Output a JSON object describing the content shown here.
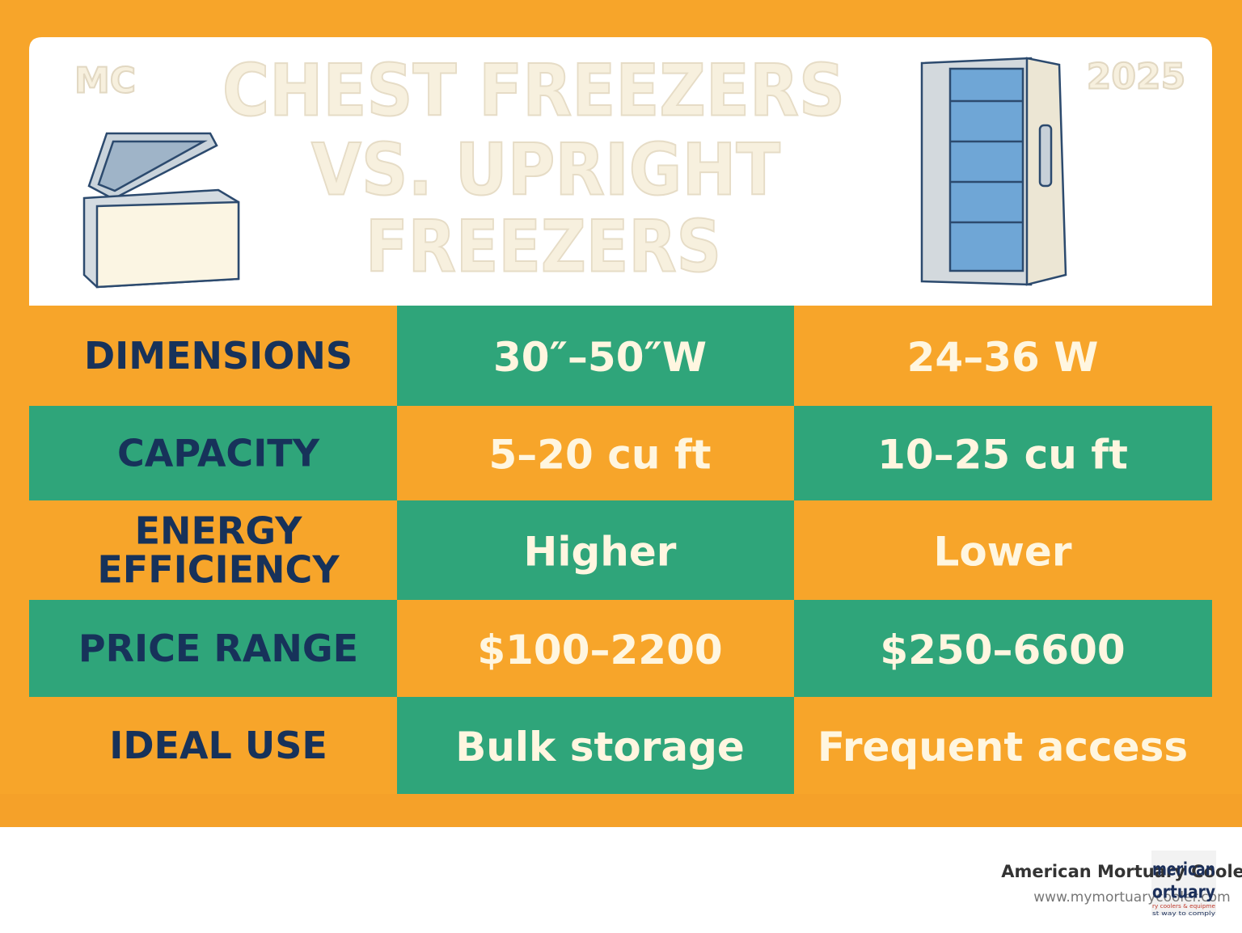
{
  "header": {
    "badge": "MC",
    "year": "2025",
    "title_lines": [
      "CHEST FREEZERS",
      "VS. UPRIGHT",
      "FREEZERS"
    ]
  },
  "table": {
    "rows": [
      {
        "label_lines": [
          "DIMENSIONS"
        ],
        "chest": "30″–50″W",
        "upright": "24–36 W"
      },
      {
        "label_lines": [
          "CAPACITY"
        ],
        "chest": "5–20 cu ft",
        "upright": "10–25 cu ft"
      },
      {
        "label_lines": [
          "ENERGY",
          "EFFICIENCY"
        ],
        "chest": "Higher",
        "upright": "Lower"
      },
      {
        "label_lines": [
          "PRICE RANGE"
        ],
        "chest": "$100–2200",
        "upright": "$250–6600"
      },
      {
        "label_lines": [
          "IDEAL USE"
        ],
        "chest": "Bulk storage",
        "upright": "Frequent access"
      }
    ]
  },
  "footer": {
    "company": "American Mortuary Coolers",
    "url": "www.mymortuarycooler.com",
    "logo_lines": [
      "merican",
      "ortuary",
      "ry coolers & equipme",
      "st way to comply"
    ]
  }
}
